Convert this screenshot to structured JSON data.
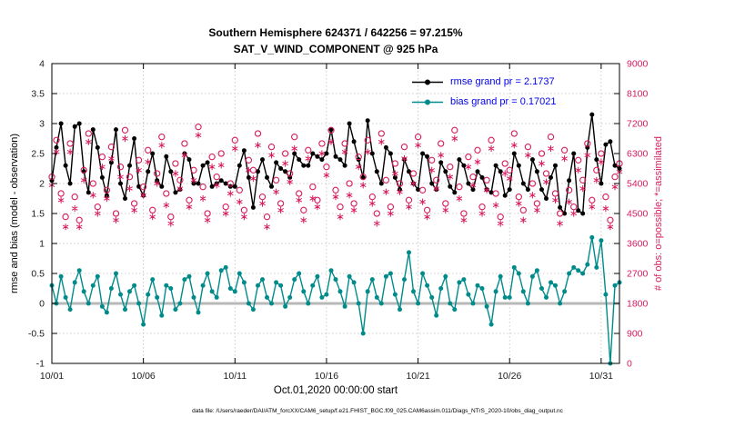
{
  "title": {
    "line1": "Southern Hemisphere 624371 / 642256 = 97.215%",
    "line2": "SAT_V_WIND_COMPONENT @ 925 hPa"
  },
  "legend": {
    "text_color": "#0000ee",
    "items": [
      {
        "label": "rmse grand pr = 2.1737",
        "color": "#000000"
      },
      {
        "label": "bias grand pr = 0.17021",
        "color": "#008b8b"
      }
    ]
  },
  "footer": "data file: /Users/raeder/DAI/ATM_forcXX/CAM6_setup/f.e21.FHIST_BGC.f09_025.CAM6assim.011/Diags_NTrS_2020-10/obs_diag_output.nc",
  "chart_data": {
    "type": "line",
    "title": "Southern Hemisphere 624371 / 642256 = 97.215% — SAT_V_WIND_COMPONENT @ 925 hPa",
    "xlabel": "Oct.01,2020 00:00:00 start",
    "ylabel_left": "rmse and bias (model - observation)",
    "ylabel_right": "# of obs: o=possible; *=assimilated",
    "xlim": [
      0,
      31
    ],
    "ylim_left": [
      -1,
      4
    ],
    "ylim_right": [
      0,
      9000
    ],
    "grid": true,
    "zero_line_color": "#b8b8b8",
    "obs_color": "#d81b60",
    "left_ticks": [
      -1,
      -0.5,
      0,
      0.5,
      1,
      1.5,
      2,
      2.5,
      3,
      3.5,
      4
    ],
    "right_ticks": [
      0,
      900,
      1800,
      2700,
      3600,
      4500,
      5400,
      6300,
      7200,
      8100,
      9000
    ],
    "x_ticks": {
      "positions": [
        0,
        5,
        10,
        15,
        20,
        25,
        30
      ],
      "labels": [
        "10/01",
        "10/06",
        "10/11",
        "10/16",
        "10/21",
        "10/26",
        "10/31"
      ]
    },
    "x_start": 0,
    "x_step": 0.25,
    "series": [
      {
        "name": "rmse",
        "axis": "left",
        "line": true,
        "marker": "dot",
        "color": "#000000",
        "values": [
          2.05,
          2.6,
          3,
          2.3,
          2,
          2.95,
          3,
          2.2,
          1.85,
          2.9,
          2.6,
          2.1,
          1.8,
          2.35,
          2.9,
          2,
          1.75,
          2.3,
          2.75,
          1.95,
          1.8,
          2.2,
          2.5,
          2.05,
          1.95,
          2.45,
          2.2,
          1.85,
          1.9,
          2.5,
          2.4,
          2,
          2,
          2.3,
          2.35,
          1.95,
          2,
          2.05,
          2,
          1.95,
          1.95,
          2.3,
          2.55,
          2.1,
          1.6,
          2.2,
          2.4,
          2.1,
          1.95,
          2.35,
          2.25,
          2.2,
          2.1,
          2.5,
          2.4,
          2.3,
          2.3,
          2.5,
          2.45,
          2.4,
          2.5,
          2.9,
          2.45,
          2.4,
          2.3,
          3,
          2.7,
          2.4,
          2.1,
          3.05,
          2.5,
          2.2,
          2,
          2.6,
          2.5,
          2.1,
          1.9,
          2.4,
          2.2,
          2,
          1.9,
          2.5,
          2.45,
          2,
          1.9,
          2.35,
          2.2,
          1.95,
          1.85,
          2.4,
          2.3,
          2,
          1.9,
          2.2,
          2.1,
          1.9,
          1.85,
          2.3,
          2.2,
          1.8,
          1.9,
          2.5,
          2.3,
          2,
          1.9,
          2.4,
          2.2,
          1.9,
          1.75,
          2.1,
          2.3,
          1.6,
          1.5,
          2.05,
          2.5,
          1.55,
          1.5,
          2.6,
          3.15,
          2.4,
          2,
          2.65,
          2.7,
          2.3,
          2.25
        ]
      },
      {
        "name": "bias",
        "axis": "left",
        "line": true,
        "marker": "dot",
        "color": "#008b8b",
        "values": [
          0.3,
          0,
          0.45,
          0.1,
          -0.1,
          0.35,
          0.55,
          0.2,
          0,
          0.3,
          0.45,
          -0.05,
          -0.15,
          0.25,
          0.5,
          0.15,
          -0.1,
          0.2,
          0.3,
          0,
          -0.35,
          0.15,
          0.4,
          0.1,
          -0.2,
          0.3,
          0.25,
          -0.1,
          0,
          0.4,
          0.45,
          0.1,
          -0.15,
          0.3,
          0.5,
          0.2,
          0.1,
          0.55,
          0.6,
          0.25,
          0.2,
          0.5,
          0.35,
          0,
          -0.1,
          0.3,
          0.4,
          0.1,
          0,
          0.35,
          0.3,
          -0.05,
          0.1,
          0.4,
          0.5,
          0.2,
          0,
          0.3,
          0.45,
          0.1,
          0.15,
          0.55,
          0.4,
          0.2,
          -0.05,
          0.45,
          0.35,
          0,
          -0.5,
          0.2,
          0.4,
          0.1,
          0,
          0.45,
          0.5,
          0.15,
          -0.1,
          0.4,
          0.85,
          0.2,
          0,
          0.5,
          0.3,
          0.1,
          -0.2,
          0.25,
          0.45,
          0,
          -0.1,
          0.35,
          0.4,
          0.15,
          0,
          0.3,
          0.25,
          -0.05,
          -0.35,
          0.2,
          0.45,
          0.1,
          0.1,
          0.6,
          0.5,
          0.2,
          0,
          0.45,
          0.55,
          0.25,
          0.1,
          0.35,
          0.3,
          0,
          0.2,
          0.5,
          0.6,
          0.55,
          0.5,
          0.65,
          1.1,
          0.6,
          1.05,
          0.15,
          -1,
          0.3,
          0.35
        ]
      },
      {
        "name": "possible",
        "axis": "right",
        "line": false,
        "marker": "circle",
        "color": "#d81b60",
        "values": [
          5600,
          6700,
          5100,
          4400,
          6600,
          5000,
          4300,
          5800,
          6900,
          5400,
          4700,
          6200,
          5200,
          6500,
          4500,
          5900,
          7000,
          5600,
          4800,
          6100,
          5300,
          6400,
          4600,
          5700,
          6800,
          5100,
          4400,
          6000,
          5500,
          6600,
          4900,
          5800,
          7100,
          5300,
          4500,
          6200,
          5600,
          6300,
          4700,
          5400,
          6700,
          5200,
          4600,
          6100,
          5800,
          6900,
          5000,
          4400,
          6500,
          5500,
          4800,
          6300,
          5700,
          6800,
          5100,
          4600,
          6400,
          5300,
          4900,
          6600,
          5900,
          7000,
          5200,
          4700,
          6600,
          5400,
          4800,
          6200,
          5600,
          6700,
          5000,
          4500,
          6900,
          5500,
          4700,
          6000,
          5400,
          6500,
          4900,
          5700,
          6800,
          5200,
          4600,
          6100,
          5500,
          6600,
          4800,
          5900,
          7000,
          5300,
          4500,
          6200,
          5600,
          6400,
          4700,
          5500,
          6700,
          5100,
          4400,
          6000,
          5800,
          6900,
          5000,
          4600,
          6500,
          5400,
          4800,
          6300,
          5700,
          6800,
          5100,
          4500,
          6400,
          5200,
          4700,
          6100,
          5500,
          6600,
          4900,
          5800,
          6300,
          5000,
          4300,
          5600,
          6000
        ]
      },
      {
        "name": "assimilated",
        "axis": "right",
        "line": false,
        "marker": "asterisk",
        "color": "#d81b60",
        "values": [
          5350,
          6350,
          4900,
          4100,
          6350,
          4650,
          4100,
          5500,
          6650,
          5050,
          4500,
          5900,
          4950,
          6150,
          4300,
          5600,
          6750,
          5250,
          4600,
          5800,
          5050,
          6050,
          4400,
          5400,
          6550,
          4750,
          4200,
          5700,
          5250,
          6250,
          4700,
          5500,
          6850,
          4950,
          4300,
          5900,
          5350,
          5950,
          4500,
          5100,
          6450,
          4850,
          4400,
          5800,
          5550,
          6550,
          4800,
          4100,
          6250,
          5150,
          4600,
          6000,
          5450,
          6450,
          4900,
          4300,
          6150,
          4950,
          4700,
          6300,
          5650,
          6650,
          5000,
          4400,
          6350,
          5050,
          4600,
          5900,
          5350,
          6350,
          4800,
          4200,
          6650,
          5150,
          4500,
          5700,
          5150,
          6150,
          4700,
          5400,
          6550,
          4850,
          4400,
          5800,
          5250,
          6250,
          4600,
          5600,
          6750,
          4950,
          4300,
          5900,
          5350,
          6050,
          4500,
          5200,
          6450,
          4750,
          4200,
          5700,
          5550,
          6550,
          4800,
          4300,
          6250,
          5050,
          4600,
          6000,
          5450,
          6450,
          4900,
          4200,
          6150,
          4850,
          4500,
          5800,
          5250,
          6250,
          4700,
          5500,
          6050,
          4650,
          4100,
          5300,
          5750
        ]
      }
    ]
  }
}
